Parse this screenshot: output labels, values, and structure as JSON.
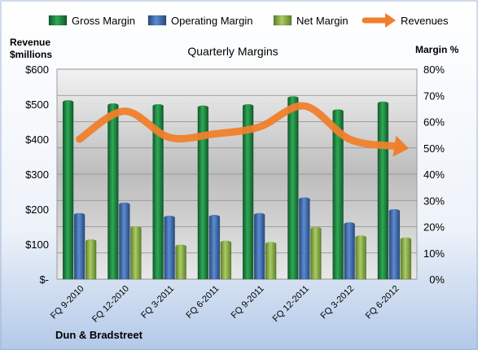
{
  "chart_data": {
    "type": "bar",
    "title": "Quarterly Margins",
    "footer": "Dun & Bradstreet",
    "y_left_label_line1": "Revenue",
    "y_left_label_line2": "$millions",
    "y_right_label": "Margin %",
    "categories": [
      "FQ 9-2010",
      "FQ 12-2010",
      "FQ 3-2011",
      "FQ 6-2011",
      "FQ 9-2011",
      "FQ 12-2011",
      "FQ 3-2012",
      "FQ 6-2012"
    ],
    "y_left_ticks": [
      "$-",
      "$100",
      "$200",
      "$300",
      "$400",
      "$500",
      "$600"
    ],
    "y_right_ticks": [
      "0%",
      "10%",
      "20%",
      "30%",
      "40%",
      "50%",
      "60%",
      "70%",
      "80%"
    ],
    "ylim_right": [
      0,
      80
    ],
    "ylim_left": [
      0,
      600
    ],
    "legend_position": "top",
    "grid": true,
    "series": [
      {
        "name": "Gross Margin",
        "axis": "right",
        "kind": "bar",
        "color": "#1e8a43",
        "values": [
          67.5,
          66.3,
          66.0,
          65.5,
          66.0,
          69.0,
          64.0,
          67.0
        ]
      },
      {
        "name": "Operating Margin",
        "axis": "right",
        "kind": "bar",
        "color": "#3f6fb5",
        "values": [
          24.5,
          28.5,
          23.5,
          23.8,
          24.5,
          30.5,
          21.0,
          26.0
        ]
      },
      {
        "name": "Net Margin",
        "axis": "right",
        "kind": "bar",
        "color": "#8fb64b",
        "values": [
          14.5,
          19.5,
          12.5,
          14.0,
          13.5,
          19.2,
          16.0,
          15.2
        ]
      },
      {
        "name": "Revenues",
        "axis": "left",
        "kind": "line",
        "color": "#f07f2c",
        "values": [
          400,
          480,
          405,
          415,
          435,
          495,
          400,
          380
        ]
      }
    ]
  }
}
